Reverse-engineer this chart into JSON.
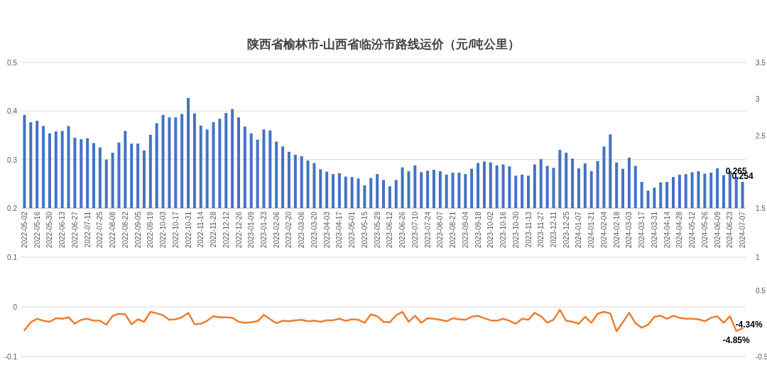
{
  "chart_data": [
    {
      "type": "bar",
      "title": "陕西省榆林市-山西省临汾市路线运价（元/吨公里）",
      "categories": [
        "2022-05-02",
        null,
        "2022-05-16",
        null,
        "2022-05-30",
        null,
        "2022-06-13",
        null,
        "2022-06-27",
        null,
        "2022-07-11",
        null,
        "2022-07-25",
        null,
        "2022-08-08",
        null,
        "2022-08-22",
        null,
        "2022-09-05",
        null,
        "2022-09-19",
        null,
        "2022-10-03",
        null,
        "2022-10-17",
        null,
        "2022-10-31",
        null,
        "2022-11-14",
        null,
        "2022-11-28",
        null,
        "2022-12-12",
        null,
        "2022-12-26",
        null,
        "2023-01-09",
        null,
        "2023-01-23",
        null,
        "2023-02-06",
        null,
        "2023-02-20",
        null,
        "2023-03-06",
        null,
        "2023-03-20",
        null,
        "2023-04-03",
        null,
        "2023-04-17",
        null,
        "2023-05-01",
        null,
        "2023-05-15",
        null,
        "2023-05-29",
        null,
        "2023-06-12",
        null,
        "2023-06-26",
        null,
        "2023-07-10",
        null,
        "2023-07-24",
        null,
        "2023-08-07",
        null,
        "2023-08-21",
        null,
        "2023-09-04",
        null,
        "2023-09-18",
        null,
        "2023-10-02",
        null,
        "2023-10-16",
        null,
        "2023-10-30",
        null,
        "2023-11-13",
        null,
        "2023-11-27",
        null,
        "2023-12-11",
        null,
        "2023-12-25",
        null,
        "2024-01-07",
        null,
        "2024-01-21",
        null,
        "2024-02-04",
        null,
        "2024-02-18",
        null,
        "2024-03-03",
        null,
        "2024-03-17",
        null,
        "2024-03-31",
        null,
        "2024-04-14",
        null,
        "2024-04-28",
        null,
        "2024-05-12",
        null,
        "2024-05-26",
        null,
        "2024-06-09",
        null,
        "2024-06-23",
        null,
        "2024-07-07"
      ],
      "series": [
        {
          "color": "#4472c4",
          "values": [
            0.392,
            0.377,
            0.38,
            0.369,
            0.354,
            0.358,
            0.359,
            0.369,
            0.345,
            0.342,
            0.344,
            0.334,
            0.325,
            0.3,
            0.314,
            0.335,
            0.359,
            0.333,
            0.333,
            0.319,
            0.351,
            0.375,
            0.392,
            0.387,
            0.387,
            0.394,
            0.427,
            0.395,
            0.37,
            0.362,
            0.377,
            0.384,
            0.396,
            0.404,
            0.387,
            0.368,
            0.354,
            0.341,
            0.362,
            0.36,
            0.337,
            0.327,
            0.316,
            0.31,
            0.307,
            0.298,
            0.293,
            0.28,
            0.275,
            0.27,
            0.272,
            0.265,
            0.264,
            0.261,
            0.247,
            0.262,
            0.27,
            0.258,
            0.245,
            0.258,
            0.284,
            0.276,
            0.288,
            0.274,
            0.277,
            0.279,
            0.276,
            0.269,
            0.273,
            0.273,
            0.27,
            0.281,
            0.293,
            0.296,
            0.294,
            0.288,
            0.29,
            0.286,
            0.267,
            0.269,
            0.267,
            0.29,
            0.301,
            0.287,
            0.283,
            0.32,
            0.314,
            0.302,
            0.282,
            0.292,
            0.276,
            0.297,
            0.327,
            0.352,
            0.294,
            0.281,
            0.304,
            0.287,
            0.254,
            0.236,
            0.242,
            0.253,
            0.254,
            0.264,
            0.269,
            0.27,
            0.274,
            0.276,
            0.271,
            0.273,
            0.282,
            0.268,
            0.277,
            0.265,
            0.254
          ],
          "value_labels": [
            null,
            null,
            null,
            null,
            null,
            null,
            null,
            null,
            null,
            null,
            null,
            null,
            null,
            null,
            null,
            null,
            null,
            null,
            null,
            null,
            null,
            null,
            null,
            null,
            null,
            null,
            null,
            null,
            null,
            null,
            null,
            null,
            null,
            null,
            null,
            null,
            null,
            null,
            null,
            null,
            null,
            null,
            null,
            null,
            null,
            null,
            null,
            null,
            null,
            null,
            null,
            null,
            null,
            null,
            null,
            null,
            null,
            null,
            null,
            null,
            null,
            null,
            null,
            null,
            null,
            null,
            null,
            null,
            null,
            null,
            null,
            null,
            null,
            null,
            null,
            null,
            null,
            null,
            null,
            null,
            null,
            null,
            null,
            null,
            null,
            null,
            null,
            null,
            null,
            null,
            null,
            null,
            null,
            null,
            null,
            null,
            null,
            null,
            null,
            null,
            null,
            null,
            null,
            null,
            null,
            null,
            null,
            null,
            null,
            null,
            null,
            null,
            null,
            "0.265",
            "0.254"
          ]
        }
      ],
      "ylim": [
        0.2,
        0.5
      ],
      "yticks": [
        0.2,
        0.3,
        0.4,
        0.5
      ],
      "y2lim": [
        1.5,
        3.5
      ],
      "y2ticks": [
        1.5,
        2.5,
        3,
        3.5
      ],
      "grid": "y"
    },
    {
      "type": "line",
      "categories": [
        null,
        null,
        null,
        null,
        null,
        null,
        null,
        null,
        null,
        null,
        null,
        null,
        null,
        null,
        null,
        null,
        null,
        null,
        null,
        null,
        null,
        null,
        null,
        null,
        null,
        null,
        null,
        null,
        null,
        null,
        null,
        null,
        null,
        null,
        null,
        null,
        null,
        null,
        null,
        null,
        null,
        null,
        null,
        null,
        null,
        null,
        null,
        null,
        null,
        null,
        null,
        null,
        null,
        null,
        null,
        null,
        null,
        null,
        null,
        null,
        null,
        null,
        null,
        null,
        null,
        null,
        null,
        null,
        null,
        null,
        null,
        null,
        null,
        null,
        null,
        null,
        null,
        null,
        null,
        null,
        null,
        null,
        null,
        null,
        null,
        null,
        null,
        null,
        null,
        null,
        null,
        null,
        null,
        null,
        null,
        null,
        null,
        null,
        null,
        null,
        null,
        null,
        null,
        null,
        null,
        null,
        null,
        null,
        null,
        null,
        null,
        null,
        null,
        null,
        null
      ],
      "series": [
        {
          "color": "#ed7d31",
          "values": [
            -0.047,
            -0.031,
            -0.024,
            -0.028,
            -0.03,
            -0.023,
            -0.024,
            -0.021,
            -0.034,
            -0.026,
            -0.024,
            -0.028,
            -0.028,
            -0.036,
            -0.018,
            -0.014,
            -0.015,
            -0.035,
            -0.025,
            -0.03,
            -0.01,
            -0.013,
            -0.017,
            -0.026,
            -0.025,
            -0.021,
            -0.012,
            -0.035,
            -0.034,
            -0.028,
            -0.019,
            -0.021,
            -0.021,
            -0.022,
            -0.03,
            -0.032,
            -0.031,
            -0.029,
            -0.016,
            -0.025,
            -0.033,
            -0.028,
            -0.029,
            -0.027,
            -0.026,
            -0.029,
            -0.028,
            -0.03,
            -0.027,
            -0.027,
            -0.024,
            -0.028,
            -0.025,
            -0.026,
            -0.032,
            -0.015,
            -0.019,
            -0.03,
            -0.031,
            -0.017,
            -0.01,
            -0.03,
            -0.018,
            -0.032,
            -0.023,
            -0.024,
            -0.026,
            -0.029,
            -0.023,
            -0.025,
            -0.026,
            -0.02,
            -0.018,
            -0.023,
            -0.027,
            -0.028,
            -0.024,
            -0.028,
            -0.034,
            -0.024,
            -0.026,
            -0.012,
            -0.019,
            -0.032,
            -0.026,
            -0.006,
            -0.028,
            -0.03,
            -0.034,
            -0.02,
            -0.032,
            -0.014,
            -0.01,
            -0.013,
            -0.049,
            -0.031,
            -0.012,
            -0.033,
            -0.042,
            -0.036,
            -0.02,
            -0.018,
            -0.024,
            -0.018,
            -0.022,
            -0.024,
            -0.024,
            -0.025,
            -0.029,
            -0.022,
            -0.019,
            -0.032,
            -0.019,
            -0.0485,
            -0.0434
          ],
          "value_labels": [
            null,
            null,
            null,
            null,
            null,
            null,
            null,
            null,
            null,
            null,
            null,
            null,
            null,
            null,
            null,
            null,
            null,
            null,
            null,
            null,
            null,
            null,
            null,
            null,
            null,
            null,
            null,
            null,
            null,
            null,
            null,
            null,
            null,
            null,
            null,
            null,
            null,
            null,
            null,
            null,
            null,
            null,
            null,
            null,
            null,
            null,
            null,
            null,
            null,
            null,
            null,
            null,
            null,
            null,
            null,
            null,
            null,
            null,
            null,
            null,
            null,
            null,
            null,
            null,
            null,
            null,
            null,
            null,
            null,
            null,
            null,
            null,
            null,
            null,
            null,
            null,
            null,
            null,
            null,
            null,
            null,
            null,
            null,
            null,
            null,
            null,
            null,
            null,
            null,
            null,
            null,
            null,
            null,
            null,
            null,
            null,
            null,
            null,
            null,
            null,
            null,
            null,
            null,
            null,
            null,
            null,
            null,
            null,
            null,
            null,
            null,
            null,
            null,
            "-4.85%",
            "-4.34%"
          ]
        }
      ],
      "ylim": [
        -0.1,
        0.1
      ],
      "yticks": [
        -0.1,
        0,
        0.1
      ],
      "y2lim": [
        -0.5,
        1
      ],
      "y2ticks": [
        -0.5,
        0.5,
        1
      ],
      "grid": "y",
      "tick_labels": "y"
    }
  ]
}
